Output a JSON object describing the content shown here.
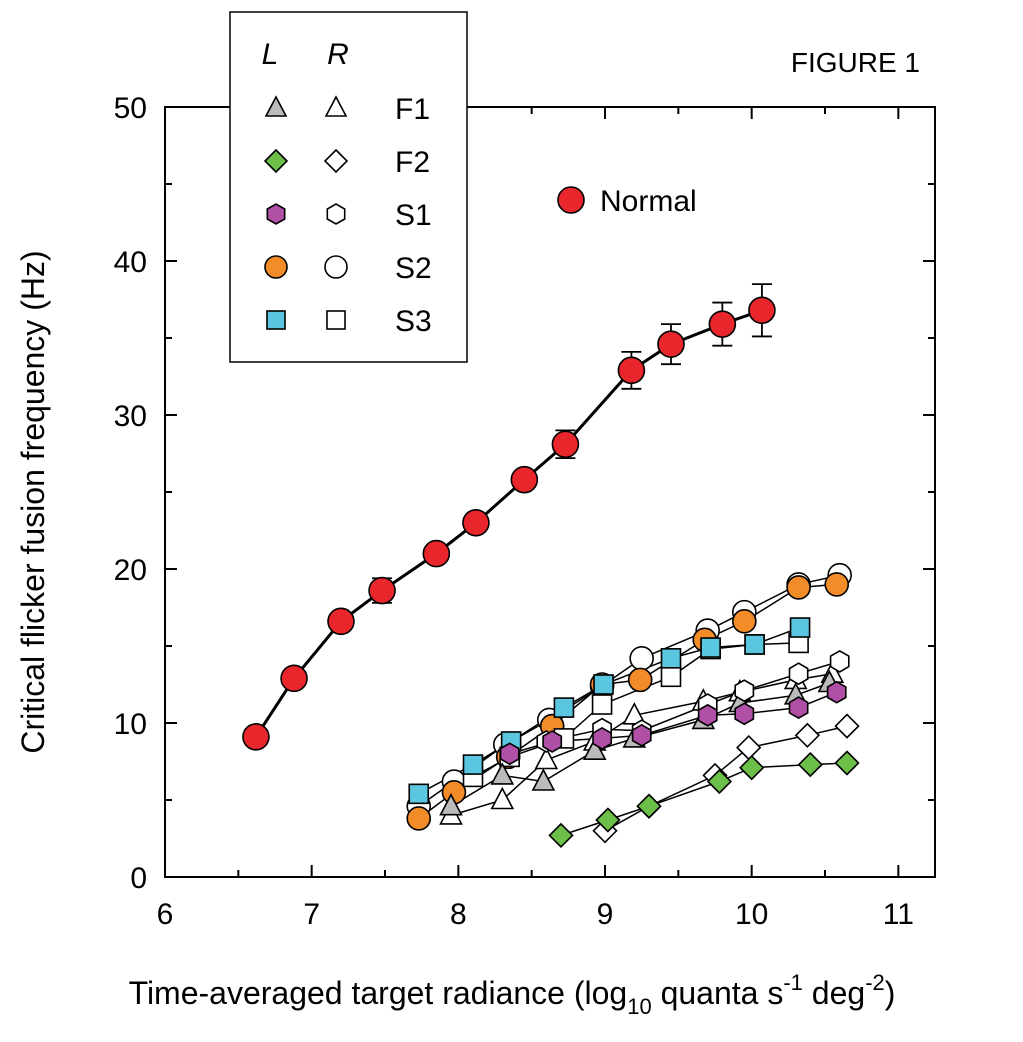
{
  "chart_data": {
    "type": "scatter",
    "figure_label": "FIGURE 1",
    "xlabel": {
      "main": "Time-averaged target radiance (log",
      "sub": "10",
      "mid": " quanta s",
      "sup1": "-1",
      "mid2": " deg",
      "sup2": "-2",
      "end": ")"
    },
    "ylabel": "Critical flicker fusion frequency (Hz)",
    "xlim": [
      6,
      11.25
    ],
    "ylim": [
      0,
      50
    ],
    "xticks": [
      "6",
      "7",
      "8",
      "9",
      "10",
      "11"
    ],
    "yticks": [
      "0",
      "10",
      "20",
      "30",
      "40",
      "50"
    ],
    "legend": {
      "placement": "top-left",
      "header_left": "L",
      "header_right": "R",
      "entries": [
        {
          "label": "F1",
          "marker": "triangle",
          "left_fill": "#bbbbbb",
          "right_fill": "#ffffff"
        },
        {
          "label": "F2",
          "marker": "diamond",
          "left_fill": "#6cc04a",
          "right_fill": "#ffffff"
        },
        {
          "label": "S1",
          "marker": "hexagon",
          "left_fill": "#b04fa6",
          "right_fill": "#ffffff"
        },
        {
          "label": "S2",
          "marker": "circle",
          "left_fill": "#f28c28",
          "right_fill": "#ffffff"
        },
        {
          "label": "S3",
          "marker": "square",
          "left_fill": "#5bc6e0",
          "right_fill": "#ffffff"
        }
      ],
      "normal_label": "Normal",
      "normal_fill": "#e8262b"
    },
    "series": [
      {
        "name": "Normal",
        "marker": "circle",
        "fill": "#e8262b",
        "bold": true,
        "x": [
          6.62,
          6.88,
          7.2,
          7.48,
          7.85,
          8.12,
          8.45,
          8.73,
          9.18,
          9.45,
          9.8,
          10.07
        ],
        "y": [
          9.1,
          12.9,
          16.6,
          18.6,
          21.0,
          23.0,
          25.8,
          28.1,
          32.9,
          34.6,
          35.9,
          36.8
        ],
        "err": [
          0.5,
          0.5,
          0.5,
          0.8,
          0.5,
          0.5,
          0.5,
          0.9,
          1.2,
          1.3,
          1.4,
          1.7
        ]
      },
      {
        "name": "S2 R",
        "marker": "circle",
        "fill": "#ffffff",
        "x": [
          7.73,
          7.97,
          8.32,
          8.62,
          8.98,
          9.25,
          9.7,
          9.95,
          10.32,
          10.6
        ],
        "y": [
          4.6,
          6.2,
          8.6,
          10.2,
          12.4,
          14.2,
          16.0,
          17.2,
          19.0,
          19.6
        ]
      },
      {
        "name": "S2 L",
        "marker": "circle",
        "fill": "#f28c28",
        "x": [
          7.73,
          7.97,
          8.34,
          8.64,
          8.98,
          9.24,
          9.68,
          9.95,
          10.32,
          10.58
        ],
        "y": [
          3.8,
          5.5,
          7.8,
          9.8,
          12.5,
          12.8,
          15.4,
          16.6,
          18.8,
          19.0
        ]
      },
      {
        "name": "S3 R",
        "marker": "square",
        "fill": "#ffffff",
        "x": [
          8.1,
          8.35,
          8.72,
          8.98,
          9.45,
          9.72,
          10.02,
          10.32
        ],
        "y": [
          6.5,
          7.8,
          9.0,
          11.2,
          13.0,
          14.8,
          15.1,
          15.2
        ]
      },
      {
        "name": "S3 L",
        "marker": "square",
        "fill": "#5bc6e0",
        "x": [
          7.73,
          8.1,
          8.36,
          8.72,
          8.99,
          9.45,
          9.72,
          10.02,
          10.33
        ],
        "y": [
          5.4,
          7.3,
          8.8,
          11.0,
          12.5,
          14.2,
          14.9,
          15.1,
          16.2
        ]
      },
      {
        "name": "F1 R",
        "marker": "triangle",
        "fill": "#ffffff",
        "x": [
          7.95,
          8.3,
          8.6,
          8.93,
          9.2,
          9.67,
          9.92,
          10.3,
          10.55
        ],
        "y": [
          4.0,
          5.0,
          7.6,
          8.8,
          10.5,
          11.4,
          12.0,
          12.8,
          13.2
        ]
      },
      {
        "name": "F1 L",
        "marker": "triangle",
        "fill": "#bbbbbb",
        "x": [
          7.95,
          8.3,
          8.58,
          8.93,
          9.2,
          9.67,
          9.92,
          10.3,
          10.53
        ],
        "y": [
          4.6,
          6.6,
          6.2,
          8.2,
          9.0,
          10.2,
          11.3,
          11.8,
          12.6
        ]
      },
      {
        "name": "S1 R",
        "marker": "hexagon",
        "fill": "#ffffff",
        "x": [
          8.6,
          8.98,
          9.25,
          9.7,
          9.95,
          10.32,
          10.6
        ],
        "y": [
          8.8,
          9.6,
          9.5,
          11.2,
          12.1,
          13.2,
          14.0
        ]
      },
      {
        "name": "S1 L",
        "marker": "hexagon",
        "fill": "#b04fa6",
        "x": [
          8.35,
          8.64,
          8.98,
          9.25,
          9.7,
          9.95,
          10.32,
          10.58
        ],
        "y": [
          8.0,
          8.8,
          9.0,
          9.2,
          10.5,
          10.6,
          11.0,
          12.0
        ]
      },
      {
        "name": "F2 R",
        "marker": "diamond",
        "fill": "#ffffff",
        "x": [
          9.0,
          9.3,
          9.75,
          9.98,
          10.38,
          10.65
        ],
        "y": [
          3.0,
          4.6,
          6.6,
          8.4,
          9.2,
          9.8
        ]
      },
      {
        "name": "F2 L",
        "marker": "diamond",
        "fill": "#6cc04a",
        "x": [
          8.7,
          9.02,
          9.3,
          9.78,
          10.0,
          10.4,
          10.65
        ],
        "y": [
          2.7,
          3.7,
          4.6,
          6.2,
          7.1,
          7.3,
          7.4
        ]
      }
    ]
  }
}
